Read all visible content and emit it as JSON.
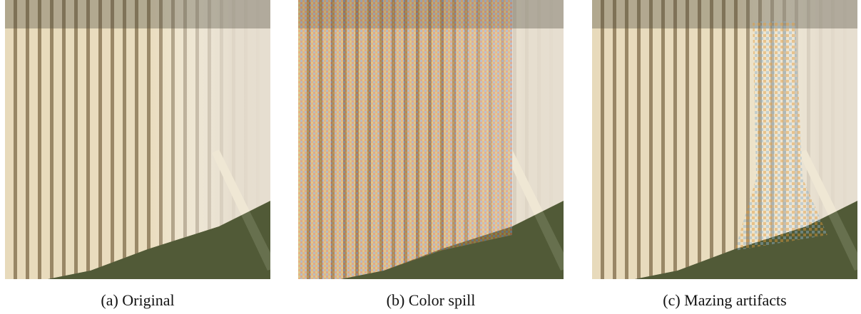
{
  "panels": [
    {
      "caption": "(a) Original"
    },
    {
      "caption": "(b) Color spill"
    },
    {
      "caption": "(c) Mazing artifacts"
    }
  ]
}
